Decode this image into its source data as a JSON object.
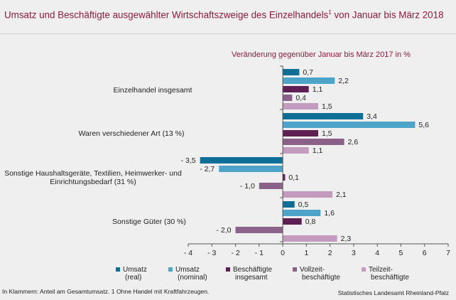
{
  "header": {
    "title": "Umsatz und Beschäftigte ausgewählter Wirtschaftszweige des Einzelhandels",
    "title_footnote_mark": "1",
    "title_suffix": " von Januar bis März 2018"
  },
  "footnote": "In Klammern: Anteil am Gesamtumsatz. 1 Ohne Handel mit Kraftfahrzeugen.",
  "source": "Statistisches Landesamt Rheinland-Pfalz",
  "chart_data": {
    "type": "bar",
    "orientation": "horizontal",
    "subtitle": "Veränderung gegenüber  Januar bis März 2017 in %",
    "categories": [
      "Einzelhandel insgesamt",
      "Waren verschiedener Art (13 %)",
      "Sonstige Haushaltsgeräte, Textilien, Heimwerker- und Einrichtungsbedarf (31 %)",
      "Sonstige Güter (30 %)"
    ],
    "series": [
      {
        "name": "Umsatz (real)",
        "legend": [
          "Umsatz",
          "(real)"
        ],
        "color": "#0e6e96",
        "values": [
          0.7,
          3.4,
          -3.5,
          0.5
        ],
        "labels": [
          "0,7",
          "3,4",
          "- 3,5",
          "0,5"
        ]
      },
      {
        "name": "Umsatz (nominal)",
        "legend": [
          "Umsatz",
          "(nominal)"
        ],
        "color": "#4ea3c8",
        "values": [
          2.2,
          5.6,
          -2.7,
          1.6
        ],
        "labels": [
          "2,2",
          "5,6",
          "- 2,7",
          "1,6"
        ]
      },
      {
        "name": "Beschäftigte insgesamt",
        "legend": [
          "Beschäftigte",
          "insgesamt"
        ],
        "color": "#5e1f52",
        "values": [
          1.1,
          1.5,
          0.1,
          0.8
        ],
        "labels": [
          "1,1",
          "1,5",
          "0,1",
          "0,8"
        ]
      },
      {
        "name": "Vollzeit-beschäftigte",
        "legend": [
          "Vollzeit-",
          "beschäftigte"
        ],
        "color": "#8a6289",
        "values": [
          0.4,
          2.6,
          -1.0,
          -2.0
        ],
        "labels": [
          "0,4",
          "2,6",
          "- 1,0",
          "- 2,0"
        ]
      },
      {
        "name": "Teilzeit-beschäftigte",
        "legend": [
          "Teilzeit-",
          "beschäftigte"
        ],
        "color": "#c39bbf",
        "values": [
          1.5,
          1.1,
          2.1,
          2.3
        ],
        "labels": [
          "1,5",
          "1,1",
          "2,1",
          "2,3"
        ]
      }
    ],
    "xlim": [
      -4,
      7
    ],
    "xticks": [
      -4,
      -3,
      -2,
      -1,
      0,
      1,
      2,
      3,
      4,
      5,
      6,
      7
    ],
    "xtick_labels": [
      "- 4",
      "- 3",
      "- 2",
      "- 1",
      "0",
      "1",
      "2",
      "3",
      "4",
      "5",
      "6",
      "7"
    ],
    "grid": false,
    "legend_position": "bottom"
  }
}
